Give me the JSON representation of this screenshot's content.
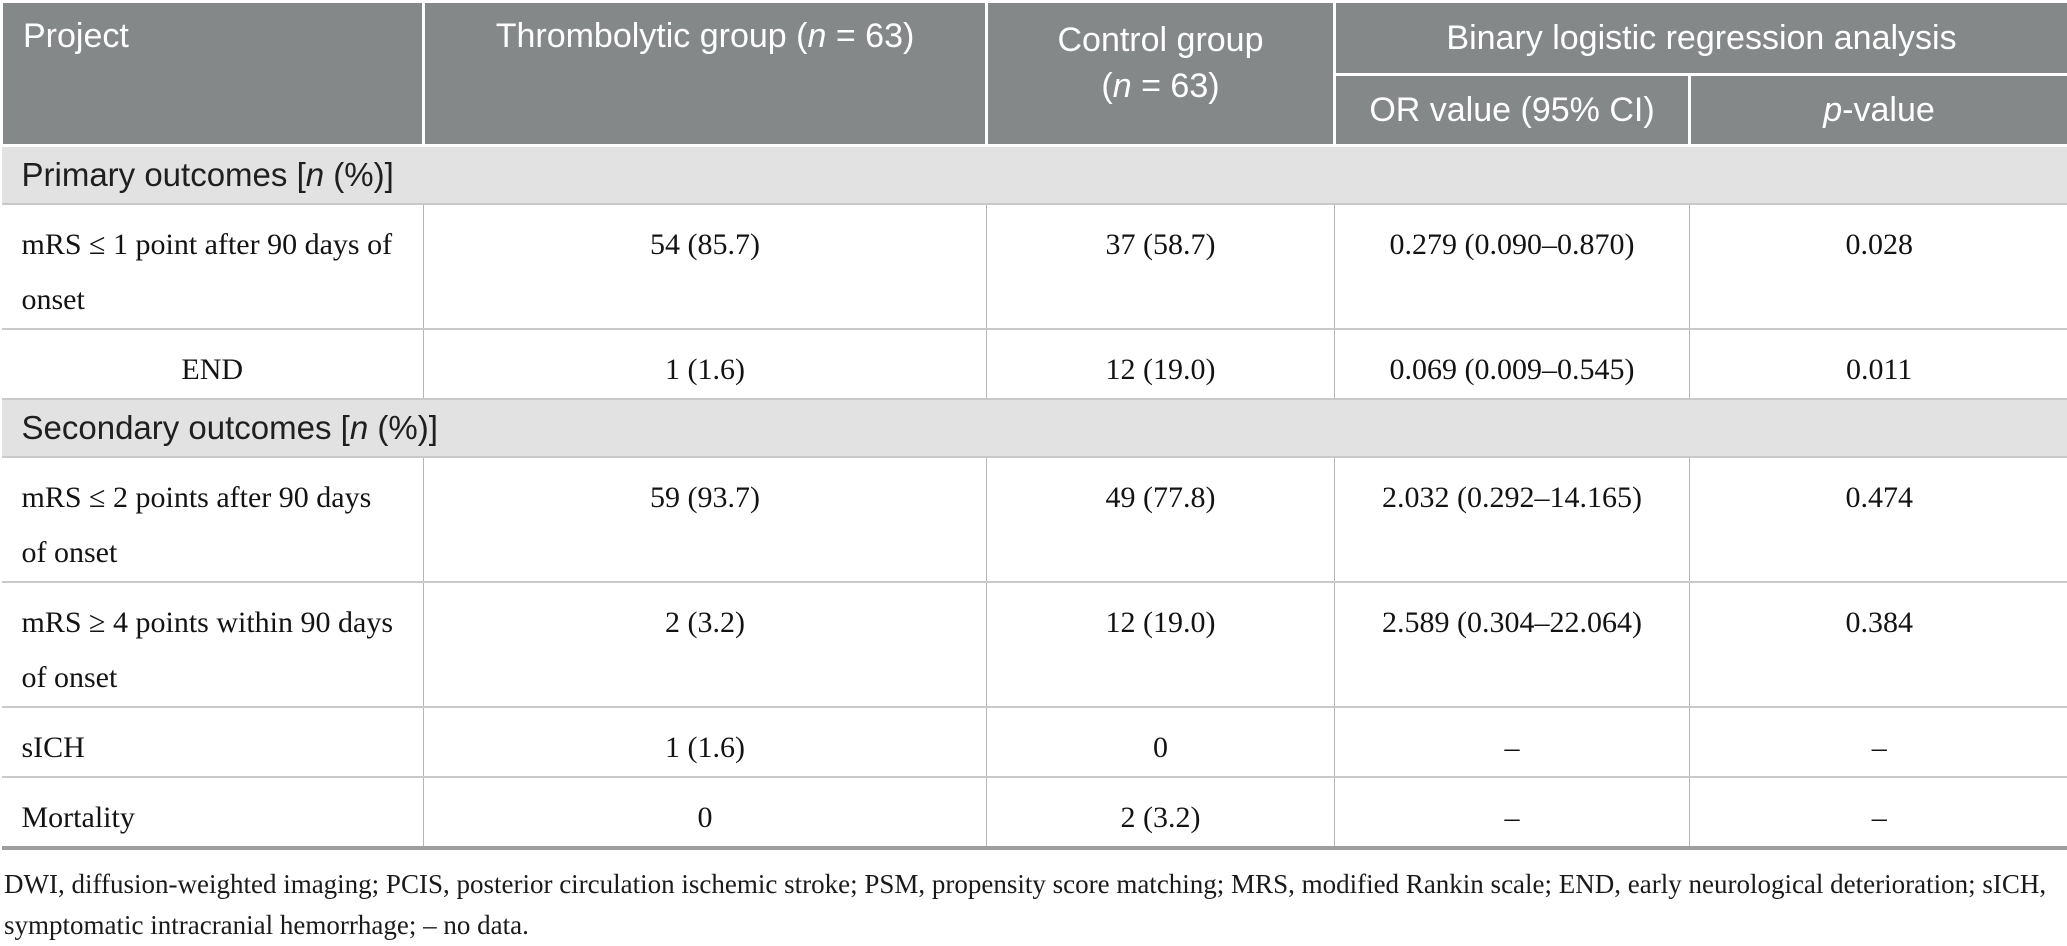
{
  "colors": {
    "header_bg": "#858889",
    "section_bg": "#e2e2e3",
    "bottom_rule": "#9e9e9e",
    "grid_h": "#c9c9c9"
  },
  "table": {
    "header": {
      "project": "Project",
      "thrombolytic": {
        "pre": "Thrombolytic group (",
        "n": "n",
        "post": " = 63)"
      },
      "control": {
        "line1": "Control group",
        "pre": "(",
        "n": "n",
        "post": " = 63)"
      },
      "binary": "Binary logistic regression analysis",
      "or": "OR value (95% CI)",
      "p": {
        "it": "p",
        "post": "-value"
      }
    },
    "sections": {
      "primary": {
        "pre": "Primary outcomes [",
        "n": "n",
        "post": " (%)]"
      },
      "secondary": {
        "pre": "Secondary outcomes [",
        "n": "n",
        "post": " (%)]"
      }
    },
    "rows": [
      {
        "label": "mRS ≤ 1 point after 90 days of onset",
        "thrombolytic": "54 (85.7)",
        "control": "37 (58.7)",
        "or": "0.279 (0.090–0.870)",
        "p": "0.028"
      },
      {
        "label": "END",
        "thrombolytic": "1 (1.6)",
        "control": "12 (19.0)",
        "or": "0.069 (0.009–0.545)",
        "p": "0.011"
      },
      {
        "label": "mRS ≤ 2 points after 90 days of onset",
        "thrombolytic": "59 (93.7)",
        "control": "49 (77.8)",
        "or": "2.032 (0.292–14.165)",
        "p": "0.474"
      },
      {
        "label": "mRS ≥ 4 points within 90 days of onset",
        "thrombolytic": "2 (3.2)",
        "control": "12 (19.0)",
        "or": "2.589 (0.304–22.064)",
        "p": "0.384"
      },
      {
        "label": "sICH",
        "thrombolytic": "1 (1.6)",
        "control": "0",
        "or": "–",
        "p": "–"
      },
      {
        "label": "Mortality",
        "thrombolytic": "0",
        "control": "2 (3.2)",
        "or": "–",
        "p": "–"
      }
    ],
    "footnote": "DWI, diffusion-weighted imaging; PCIS, posterior circulation ischemic stroke; PSM, propensity score matching; MRS, modified Rankin scale; END, early neurological deterioration; sICH, symptomatic intracranial hemorrhage; – no data."
  }
}
